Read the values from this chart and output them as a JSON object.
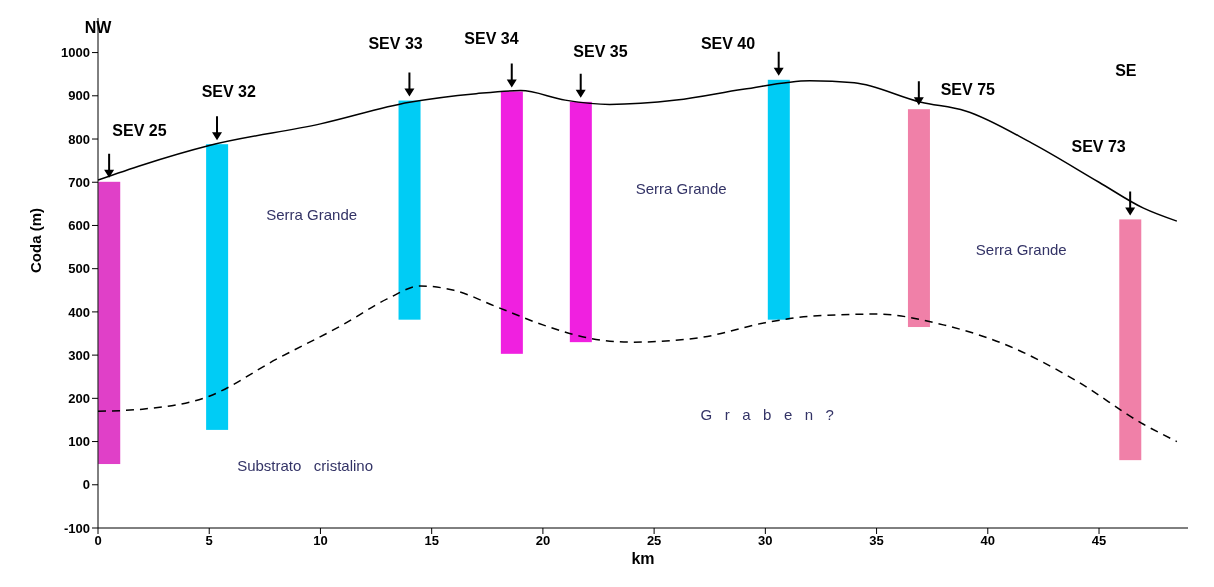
{
  "chart_data": {
    "type": "bar",
    "xlabel": "km",
    "ylabel": "Coda (m)",
    "x": [
      0.5,
      5.35,
      14.0,
      18.6,
      21.7,
      30.6,
      36.9,
      46.4
    ],
    "base": [
      48,
      127,
      382,
      303,
      330,
      382,
      365,
      57
    ],
    "values": [
      653,
      661,
      507,
      607,
      556,
      555,
      504,
      557
    ],
    "colors": [
      "#e040c8",
      "#00ccf5",
      "#00ccf5",
      "#f020e0",
      "#f020e0",
      "#00ccf5",
      "#f080a8",
      "#f080a8"
    ],
    "series": [
      {
        "type": "line",
        "color": "#000000",
        "line_style": "solid",
        "x": [
          0,
          2,
          5,
          10,
          14,
          17,
          19,
          21,
          23,
          26,
          29,
          32,
          34,
          37,
          39,
          42,
          45,
          47,
          48.5
        ],
        "values": [
          705,
          740,
          785,
          835,
          885,
          905,
          912,
          890,
          880,
          890,
          915,
          935,
          930,
          885,
          865,
          790,
          700,
          640,
          610
        ]
      },
      {
        "type": "line",
        "color": "#000000",
        "line_style": "dashed",
        "x": [
          0,
          2,
          5,
          8,
          11,
          13,
          14.5,
          16,
          18,
          20,
          22,
          24,
          27,
          30,
          32,
          35,
          38,
          41,
          44,
          47,
          48.5
        ],
        "values": [
          170,
          175,
          205,
          290,
          370,
          430,
          460,
          450,
          410,
          370,
          340,
          330,
          340,
          375,
          390,
          395,
          370,
          320,
          240,
          140,
          100
        ]
      }
    ],
    "xlim": [
      0,
      49
    ],
    "xticks": [
      0,
      5,
      10,
      15,
      20,
      25,
      30,
      35,
      40,
      45
    ],
    "ylim": [
      -100,
      1080
    ],
    "yticks": [
      -100,
      0,
      100,
      200,
      300,
      400,
      500,
      600,
      700,
      800,
      900,
      1000
    ],
    "grid": false,
    "marker": "none",
    "annotations": [
      "SEV 25",
      "SEV 32",
      "SEV 33",
      "SEV 34",
      "SEV 35",
      "SEV 40",
      "SEV 75",
      "SEV 73",
      "NW",
      "SE",
      "Serra Grande",
      "Serra Grande",
      "Serra Grande",
      "Substrato   cristalino",
      "G   r   a   b   e   n   ?"
    ]
  }
}
